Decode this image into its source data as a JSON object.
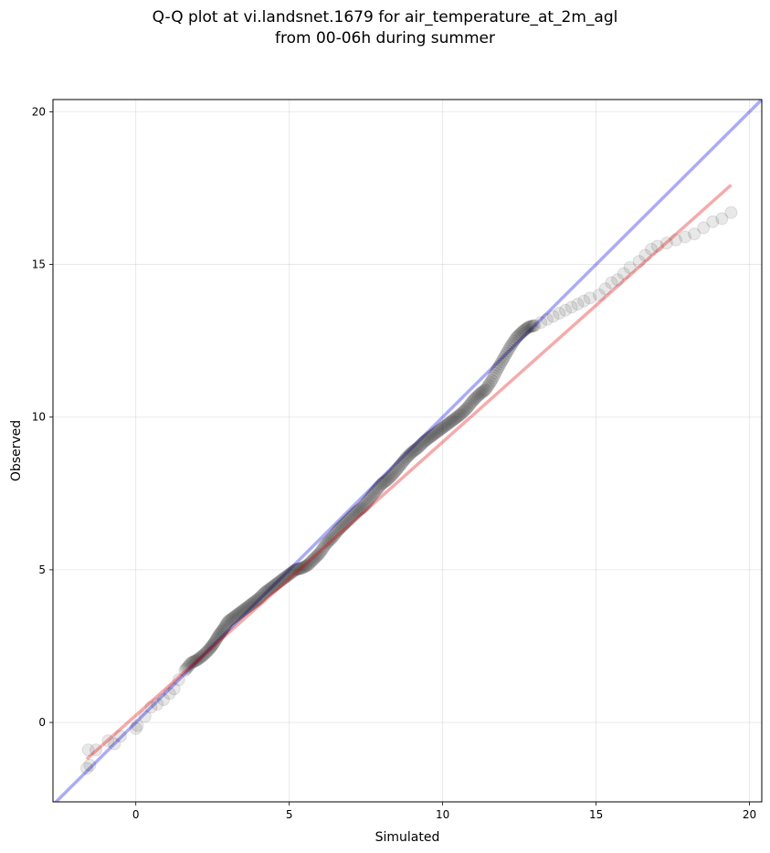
{
  "chart_data": {
    "type": "scatter",
    "title_lines": [
      "Q-Q plot at vi.landsnet.1679 for air_temperature_at_2m_agl",
      "from 00-06h during summer"
    ],
    "xlabel": "Simulated",
    "ylabel": "Observed",
    "xlim": [
      -2.7,
      20.4
    ],
    "ylim": [
      -2.6,
      20.4
    ],
    "xticks": [
      0,
      5,
      10,
      15,
      20
    ],
    "yticks": [
      0,
      5,
      10,
      15,
      20
    ],
    "grid": true,
    "colors": {
      "points": "#000000",
      "identity_line": "#0000e6",
      "fit_line": "#e00000",
      "grid": "#cccccc"
    },
    "identity_line": {
      "x": [
        -2.7,
        20.4
      ],
      "y": [
        -2.7,
        20.4
      ]
    },
    "fit_line": {
      "x": [
        -1.6,
        19.4
      ],
      "y": [
        -1.2,
        17.6
      ]
    },
    "points": {
      "x": [
        -1.6,
        -1.55,
        -1.5,
        -1.3,
        -0.9,
        -0.7,
        -0.5,
        0,
        0.05,
        0.3,
        0.5,
        0.7,
        0.9,
        1.1,
        1.25,
        1.4,
        1.6,
        1.8,
        2.0,
        2.2,
        2.4,
        2.55,
        2.7,
        2.85,
        3.0,
        3.2,
        3.4,
        3.6,
        3.8,
        4.0,
        4.2,
        4.4,
        4.6,
        4.8,
        5.0,
        5.2,
        5.4,
        5.6,
        5.8,
        6.0,
        6.2,
        6.4,
        6.6,
        6.8,
        7.0,
        7.2,
        7.4,
        7.6,
        7.8,
        8.0,
        8.2,
        8.4,
        8.6,
        8.8,
        9.0,
        9.2,
        9.4,
        9.6,
        9.8,
        10.0,
        10.2,
        10.4,
        10.6,
        10.8,
        11.0,
        11.2,
        11.4,
        11.6,
        11.8,
        12.0,
        12.2,
        12.4,
        12.6,
        12.8,
        13.0,
        13.2,
        13.4,
        13.6,
        13.8,
        14.0,
        14.2,
        14.4,
        14.6,
        14.8,
        15.1,
        15.3,
        15.5,
        15.7,
        15.9,
        16.1,
        16.4,
        16.6,
        16.8,
        17.0,
        17.3,
        17.6,
        17.9,
        18.2,
        18.5,
        18.8,
        19.1,
        19.4
      ],
      "y": [
        -1.5,
        -0.9,
        -1.4,
        -0.9,
        -0.6,
        -0.7,
        -0.45,
        -0.2,
        -0.1,
        0.2,
        0.5,
        0.6,
        0.75,
        0.95,
        1.1,
        1.4,
        1.7,
        1.95,
        2.05,
        2.2,
        2.4,
        2.6,
        2.85,
        3.05,
        3.3,
        3.45,
        3.6,
        3.75,
        3.9,
        4.05,
        4.25,
        4.4,
        4.55,
        4.7,
        4.85,
        5.0,
        5.05,
        5.15,
        5.35,
        5.55,
        5.85,
        6.05,
        6.3,
        6.5,
        6.7,
        6.9,
        7.05,
        7.3,
        7.55,
        7.8,
        7.95,
        8.15,
        8.4,
        8.65,
        8.85,
        9.0,
        9.2,
        9.35,
        9.5,
        9.65,
        9.8,
        9.95,
        10.1,
        10.3,
        10.55,
        10.75,
        10.9,
        11.2,
        11.6,
        11.95,
        12.3,
        12.6,
        12.8,
        12.95,
        13.0,
        13.1,
        13.2,
        13.3,
        13.4,
        13.5,
        13.6,
        13.7,
        13.8,
        13.9,
        14.0,
        14.2,
        14.4,
        14.5,
        14.7,
        14.9,
        15.1,
        15.3,
        15.5,
        15.6,
        15.7,
        15.8,
        15.9,
        16.0,
        16.2,
        16.4,
        16.5,
        16.7
      ]
    }
  }
}
